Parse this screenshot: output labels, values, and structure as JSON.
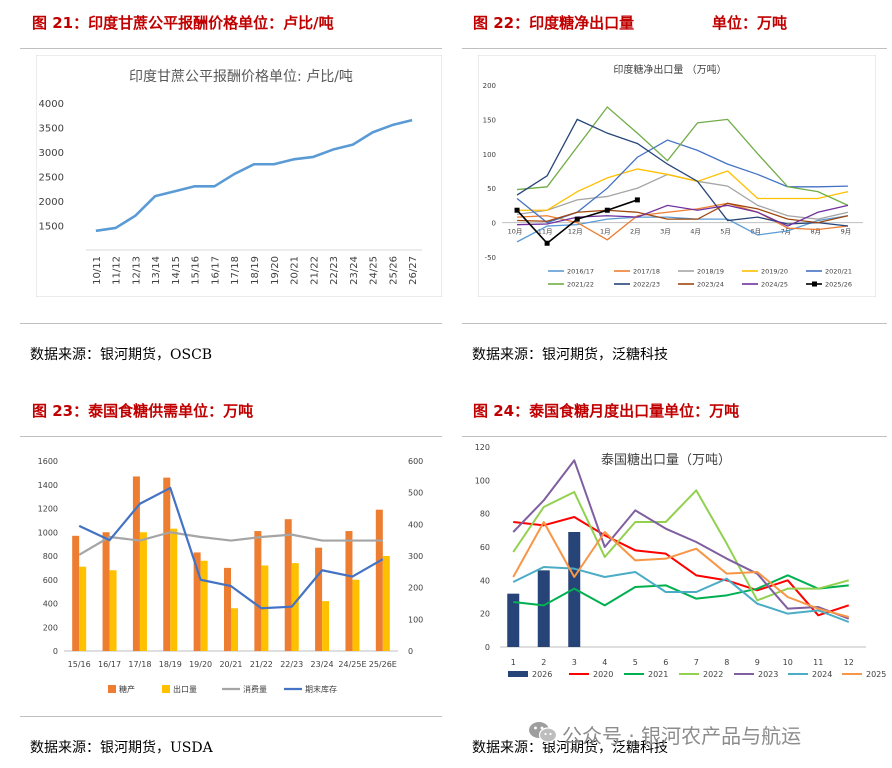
{
  "panels": {
    "p21": {
      "title": "图 21：印度甘蔗公平报酬价格单位：卢比/吨",
      "source": "数据来源：银河期货，OSCB"
    },
    "p22": {
      "title": "图 22：印度糖净出口量",
      "unit": "单位：万吨",
      "source": "数据来源：银河期货，泛糖科技"
    },
    "p23": {
      "title": "图 23：泰国食糖供需单位：万吨",
      "source": "数据来源：银河期货，USDA"
    },
    "p24": {
      "title": "图 24：泰国食糖月度出口量单位：万吨",
      "source": "数据来源：银河期货，泛糖科技"
    }
  },
  "watermark": {
    "text": "公众号 · 银河农产品与航运",
    "icon": "wechat-icon"
  },
  "colors": {
    "title_red": "#c00000",
    "line_blue": "#5b9bd5",
    "bar_orange": "#ed7d31",
    "bar_yellow": "#ffc000",
    "line_gray": "#a5a5a5",
    "line_navy": "#4472c4"
  },
  "chart_data": [
    {
      "id": "c21",
      "type": "line",
      "title": "印度甘蔗公平报酬价格单位：卢比/吨",
      "categories": [
        "10/11",
        "11/12",
        "12/13",
        "13/14",
        "14/15",
        "15/16",
        "16/17",
        "17/18",
        "18/19",
        "19/20",
        "20/21",
        "21/22",
        "22/23",
        "23/24",
        "24/25",
        "25/26",
        "26/27"
      ],
      "values": [
        1391,
        1450,
        1700,
        2100,
        2200,
        2300,
        2300,
        2550,
        2750,
        2750,
        2850,
        2900,
        3050,
        3150,
        3400,
        3550,
        3650
      ],
      "ylim": [
        1000,
        4000
      ],
      "yticks": [
        1000,
        1500,
        2000,
        2500,
        3000,
        3500,
        4000
      ],
      "grid": false,
      "color": "#5b9bd5"
    },
    {
      "id": "c22",
      "type": "line",
      "title": "印度糖净出口量（万吨）",
      "categories": [
        "10月",
        "11月",
        "12月",
        "1月",
        "2月",
        "3月",
        "4月",
        "5月",
        "6月",
        "7月",
        "8月",
        "9月"
      ],
      "ylim": [
        -50,
        200
      ],
      "yticks": [
        -50,
        0,
        50,
        100,
        150,
        200
      ],
      "legend": "bottom",
      "series": [
        {
          "name": "2016/17",
          "color": "#5b9bd5",
          "values": [
            -28,
            -5,
            -3,
            5,
            8,
            8,
            5,
            5,
            -18,
            -12,
            3,
            10
          ]
        },
        {
          "name": "2017/18",
          "color": "#ed7d31",
          "values": [
            8,
            10,
            0,
            -25,
            10,
            15,
            20,
            28,
            15,
            -8,
            -10,
            -5
          ]
        },
        {
          "name": "2018/19",
          "color": "#a5a5a5",
          "values": [
            12,
            18,
            33,
            38,
            50,
            70,
            60,
            53,
            25,
            10,
            5,
            15
          ]
        },
        {
          "name": "2019/20",
          "color": "#ffc000",
          "values": [
            18,
            18,
            45,
            65,
            78,
            70,
            60,
            75,
            35,
            35,
            35,
            45
          ]
        },
        {
          "name": "2020/21",
          "color": "#4472c4",
          "values": [
            35,
            0,
            15,
            50,
            95,
            120,
            105,
            85,
            70,
            52,
            52,
            53
          ]
        },
        {
          "name": "2021/22",
          "color": "#70ad47",
          "values": [
            48,
            52,
            110,
            168,
            130,
            90,
            145,
            150,
            100,
            52,
            45,
            25
          ]
        },
        {
          "name": "2022/23",
          "color": "#264478",
          "values": [
            40,
            68,
            150,
            130,
            115,
            85,
            60,
            3,
            8,
            -2,
            0,
            -5
          ]
        },
        {
          "name": "2023/24",
          "color": "#9e480e",
          "values": [
            3,
            2,
            15,
            18,
            15,
            5,
            5,
            28,
            20,
            5,
            0,
            10
          ]
        },
        {
          "name": "2024/25",
          "color": "#7030a0",
          "values": [
            -3,
            -2,
            8,
            10,
            8,
            25,
            18,
            25,
            15,
            -5,
            15,
            25
          ]
        },
        {
          "name": "2025/26",
          "color": "#000000",
          "values": [
            18,
            -30,
            5,
            18,
            33,
            null,
            null,
            null,
            null,
            null,
            null,
            null
          ],
          "markers": true
        }
      ]
    },
    {
      "id": "c23",
      "type": "bar",
      "title": "泰国食糖供需单位：万吨",
      "categories": [
        "15/16",
        "16/17",
        "17/18",
        "18/19",
        "19/20",
        "20/21",
        "21/22",
        "22/23",
        "23/24",
        "24/25E",
        "25/26E"
      ],
      "ylim": [
        0,
        1600
      ],
      "yticks": [
        0,
        200,
        400,
        600,
        800,
        1000,
        1200,
        1400,
        1600
      ],
      "y2lim": [
        0,
        600
      ],
      "y2ticks": [
        0,
        100,
        200,
        300,
        400,
        500,
        600
      ],
      "legend": "bottom",
      "series": [
        {
          "name": "糖产",
          "kind": "bar",
          "axis": "left",
          "color": "#ed7d31",
          "values": [
            970,
            1000,
            1470,
            1460,
            830,
            700,
            1010,
            1110,
            870,
            1010,
            1190
          ]
        },
        {
          "name": "出口量",
          "kind": "bar",
          "axis": "left",
          "color": "#ffc000",
          "values": [
            710,
            680,
            1000,
            1030,
            760,
            360,
            720,
            740,
            420,
            600,
            800
          ]
        },
        {
          "name": "消费量",
          "kind": "line",
          "axis": "left",
          "color": "#a5a5a5",
          "values": [
            810,
            960,
            930,
            1000,
            960,
            930,
            960,
            980,
            930,
            930,
            930
          ]
        },
        {
          "name": "期末库存",
          "kind": "line",
          "axis": "right",
          "color": "#4472c4",
          "values": [
            395,
            350,
            465,
            515,
            225,
            205,
            135,
            140,
            255,
            235,
            290
          ]
        }
      ]
    },
    {
      "id": "c24",
      "type": "line",
      "title": "泰国糖出口量（万吨）",
      "categories": [
        "1",
        "2",
        "3",
        "4",
        "5",
        "6",
        "7",
        "8",
        "9",
        "10",
        "11",
        "12"
      ],
      "ylim": [
        0,
        120
      ],
      "yticks": [
        0,
        20,
        40,
        60,
        80,
        100,
        120
      ],
      "legend": "bottom",
      "series": [
        {
          "name": "2026",
          "kind": "bar",
          "color": "#264478",
          "values": [
            32,
            46,
            69,
            null,
            null,
            null,
            null,
            null,
            null,
            null,
            null,
            null
          ]
        },
        {
          "name": "2020",
          "kind": "line",
          "color": "#ff0000",
          "values": [
            75,
            73,
            78,
            67,
            58,
            56,
            43,
            40,
            34,
            40,
            19,
            25
          ]
        },
        {
          "name": "2021",
          "kind": "line",
          "color": "#00b050",
          "values": [
            27,
            25,
            35,
            25,
            36,
            37,
            29,
            31,
            35,
            43,
            35,
            37
          ]
        },
        {
          "name": "2022",
          "kind": "line",
          "color": "#92d050",
          "values": [
            57,
            84,
            93,
            54,
            75,
            75,
            94,
            62,
            28,
            35,
            35,
            40
          ]
        },
        {
          "name": "2023",
          "kind": "line",
          "color": "#7f5fa0",
          "values": [
            69,
            88,
            112,
            60,
            82,
            71,
            63,
            53,
            44,
            23,
            24,
            17
          ]
        },
        {
          "name": "2024",
          "kind": "line",
          "color": "#4bacc6",
          "values": [
            39,
            48,
            47,
            42,
            45,
            33,
            33,
            41,
            26,
            20,
            22,
            15
          ]
        },
        {
          "name": "2025",
          "kind": "line",
          "color": "#f79646",
          "values": [
            42,
            75,
            42,
            69,
            52,
            53,
            59,
            44,
            45,
            30,
            23,
            18
          ]
        }
      ]
    }
  ]
}
